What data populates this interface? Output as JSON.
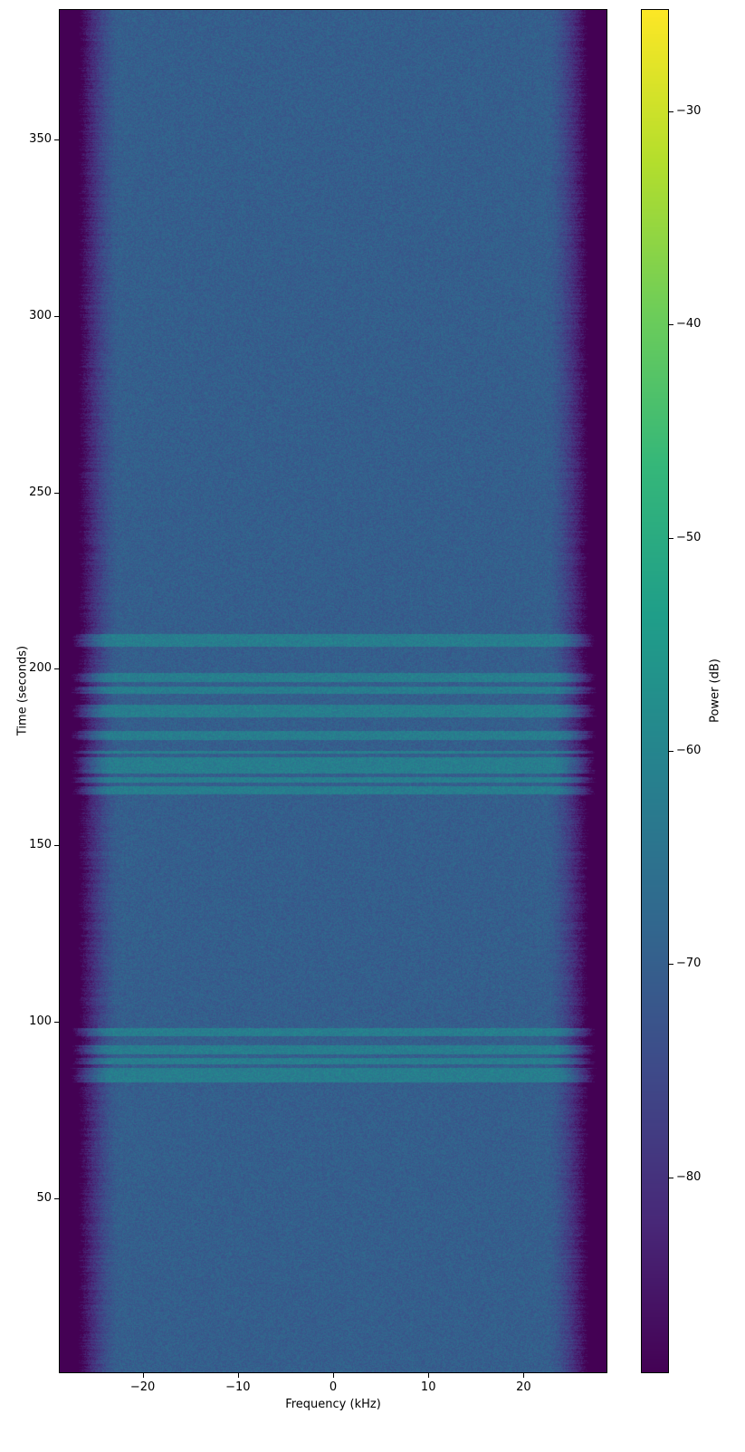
{
  "chart_data": {
    "type": "heatmap",
    "title": "",
    "xlabel": "Frequency (kHz)",
    "ylabel": "Time (seconds)",
    "colorbar_label": "Power (dB)",
    "colormap": "viridis",
    "xlim": [
      -28.8,
      28.8
    ],
    "ylim": [
      0.5,
      386.9
    ],
    "clim": [
      -89.2,
      -25.2
    ],
    "xticks": [
      -20,
      -10,
      0,
      10,
      20
    ],
    "yticks": [
      50,
      100,
      150,
      200,
      250,
      300,
      350
    ],
    "cticks": [
      -30,
      -40,
      -50,
      -60,
      -70,
      -80
    ],
    "noise_floor_db": -70,
    "band_edge_db": -89,
    "passband_khz": [
      -26.5,
      26.5
    ],
    "band_level_db": -62,
    "bands_seconds": [
      [
        206.5,
        210
      ],
      [
        196.5,
        199
      ],
      [
        193,
        195
      ],
      [
        186.5,
        190
      ],
      [
        180,
        182.5
      ],
      [
        176,
        177
      ],
      [
        170.5,
        175
      ],
      [
        168,
        169.5
      ],
      [
        164.5,
        167
      ],
      [
        96,
        98.5
      ],
      [
        91,
        93.5
      ],
      [
        88,
        90
      ],
      [
        85,
        87
      ],
      [
        83,
        85
      ]
    ]
  }
}
